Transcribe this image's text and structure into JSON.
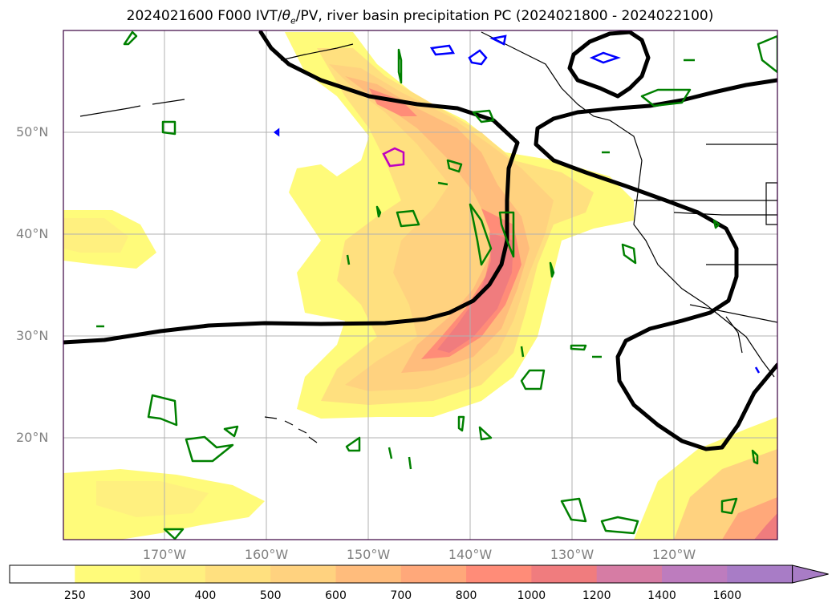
{
  "title": {
    "prefix": "2024021600 F000 IVT/",
    "theta": "θ",
    "theta_sub": "e",
    "suffix": "/PV, river basin precipitation PC (2024021800 - 2024022100)"
  },
  "lat_labels": [
    "50°N",
    "40°N",
    "30°N",
    "20°N"
  ],
  "lon_labels": [
    "170°W",
    "160°W",
    "150°W",
    "140°W",
    "130°W",
    "120°W"
  ],
  "colorbar": {
    "levels": [
      "250",
      "300",
      "400",
      "500",
      "600",
      "700",
      "800",
      "1000",
      "1200",
      "1400",
      "1600"
    ],
    "colors": [
      "#ffffff",
      "#fffb7a",
      "#fff07f",
      "#ffe07f",
      "#ffd27f",
      "#ffbc7c",
      "#ffa87a",
      "#ff8c78",
      "#f07c7e",
      "#d67ca4",
      "#bd7cbe",
      "#a87cc6"
    ],
    "extend": "max"
  },
  "legend_colors": {
    "ivt_contour": "#000000",
    "pv_positive": "#008000",
    "pv_negative": "#0000ff",
    "pv_other": "#c000c0",
    "coastline": "#000000"
  }
}
